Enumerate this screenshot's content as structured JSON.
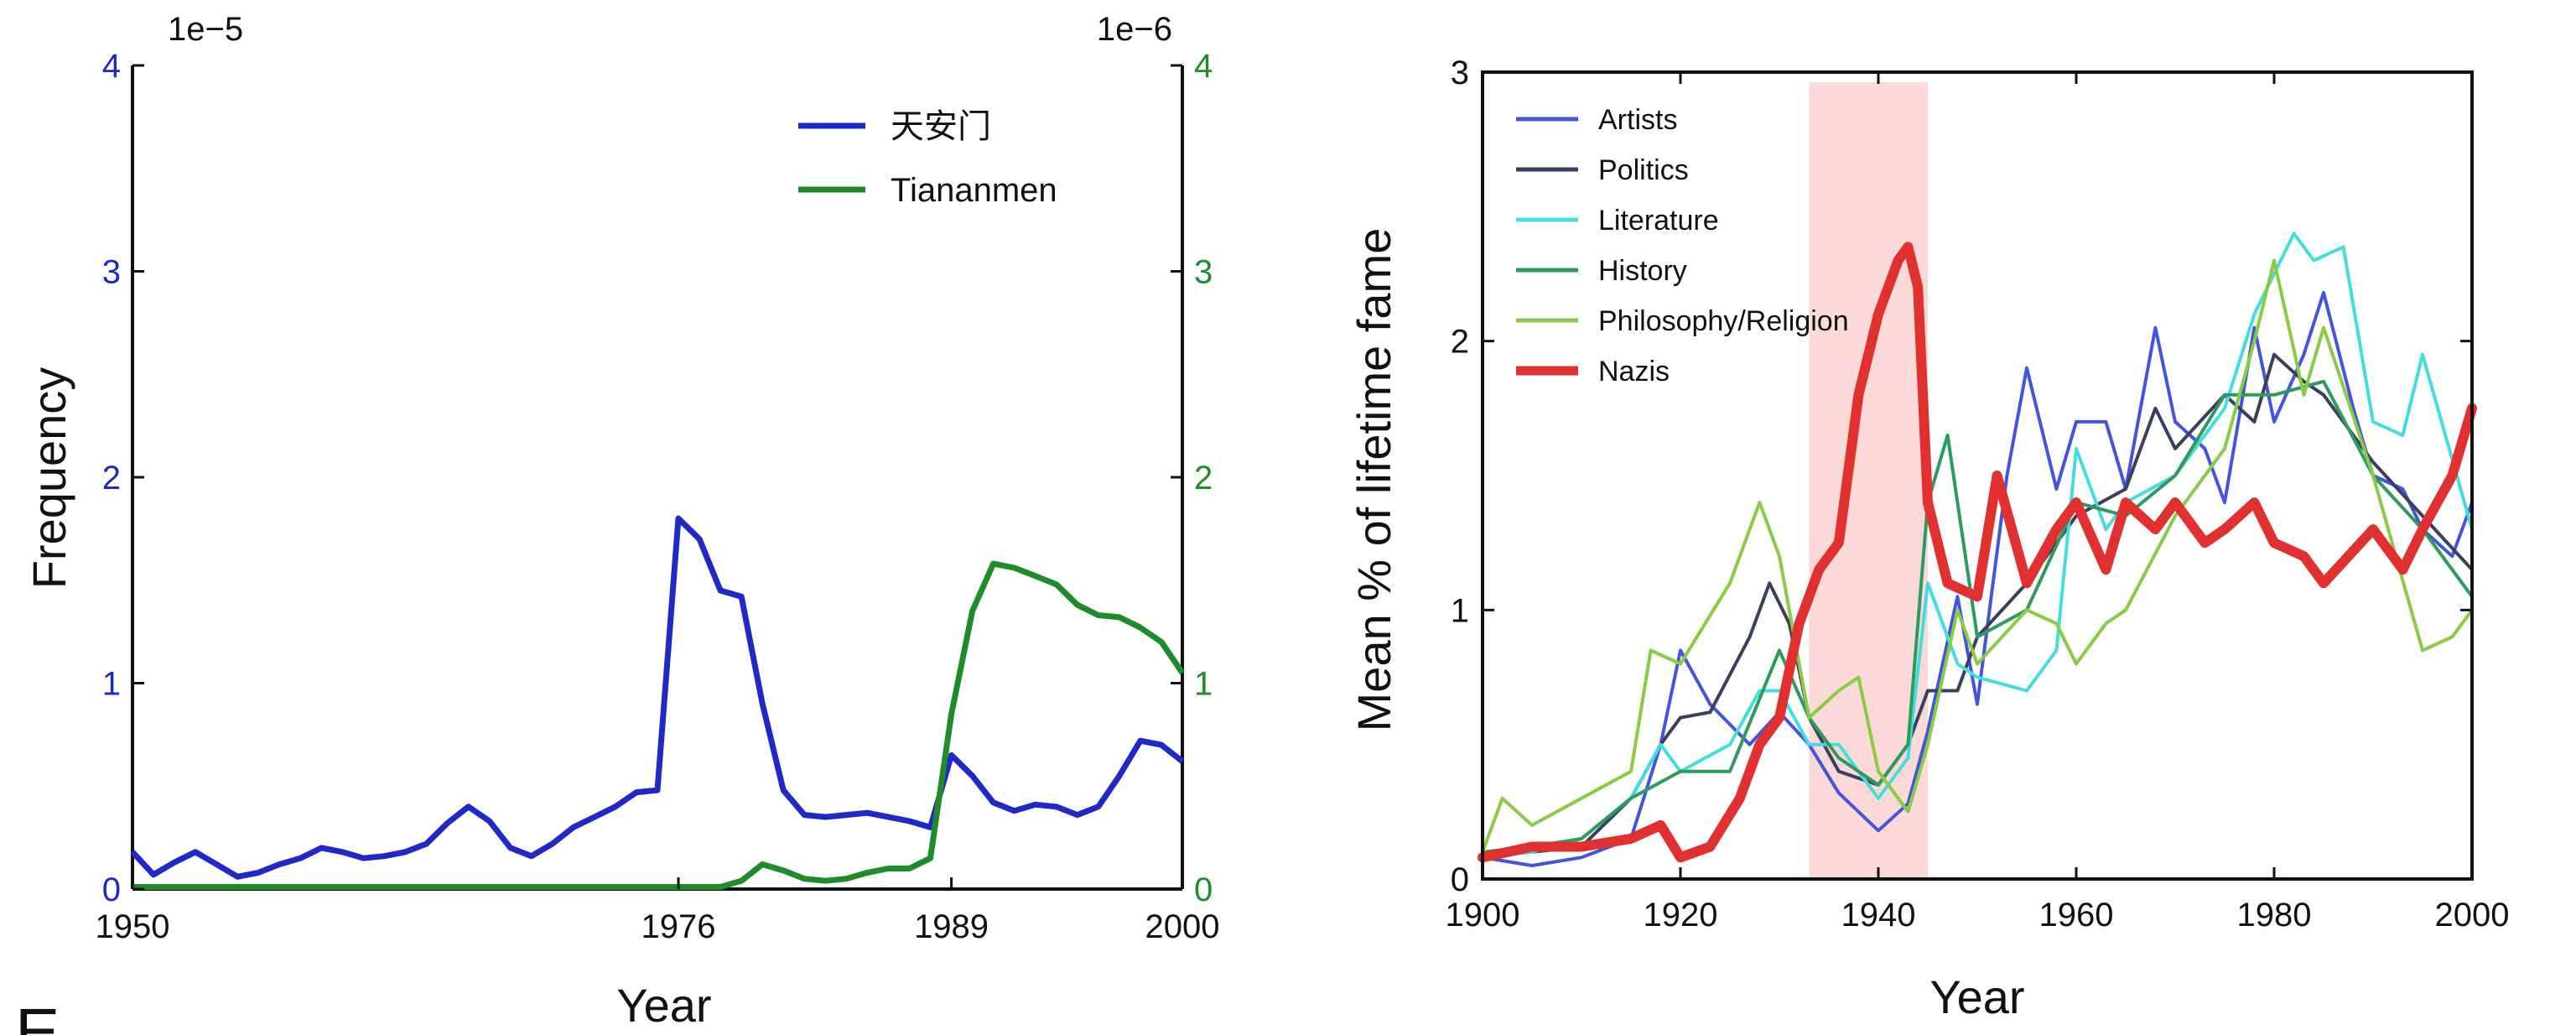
{
  "figure_letter": "E",
  "colors": {
    "blue": "#1f28c8",
    "green": "#1e8c28",
    "axis": "#111111",
    "shade": "#fbd9d9",
    "artists": "#4455dd",
    "politics": "#3a3f5e",
    "literature": "#44dddd",
    "history": "#2e9b5e",
    "philosophy": "#88cc44",
    "nazis": "#e03030"
  },
  "chart_data": [
    {
      "type": "line",
      "xlabel": "Year",
      "ylabel": "Frequency",
      "xlim": [
        1950,
        2000
      ],
      "xticks": [
        1950,
        1976,
        1989,
        2000
      ],
      "left_axis": {
        "ylim": [
          0,
          4
        ],
        "ticks": [
          0,
          1,
          2,
          3,
          4
        ],
        "exponent": "1e−5",
        "color": "#1f28c8"
      },
      "right_axis": {
        "ylim": [
          0,
          4
        ],
        "ticks": [
          0,
          1,
          2,
          3,
          4
        ],
        "exponent": "1e−6",
        "color": "#1e8c28"
      },
      "legend": [
        "天安门",
        "Tiananmen"
      ],
      "series": [
        {
          "name": "天安门",
          "axis": "left",
          "color": "#1f28c8",
          "x": [
            1950,
            1951,
            1952,
            1953,
            1954,
            1955,
            1956,
            1957,
            1958,
            1959,
            1960,
            1961,
            1962,
            1963,
            1964,
            1965,
            1966,
            1967,
            1968,
            1969,
            1970,
            1971,
            1972,
            1973,
            1974,
            1975,
            1976,
            1977,
            1978,
            1979,
            1980,
            1981,
            1982,
            1983,
            1984,
            1985,
            1986,
            1987,
            1988,
            1989,
            1990,
            1991,
            1992,
            1993,
            1994,
            1995,
            1996,
            1997,
            1998,
            1999,
            2000
          ],
          "y": [
            0.18,
            0.07,
            0.13,
            0.18,
            0.12,
            0.06,
            0.08,
            0.12,
            0.15,
            0.2,
            0.18,
            0.15,
            0.16,
            0.18,
            0.22,
            0.32,
            0.4,
            0.33,
            0.2,
            0.16,
            0.22,
            0.3,
            0.35,
            0.4,
            0.47,
            0.48,
            1.8,
            1.7,
            1.45,
            1.42,
            0.9,
            0.48,
            0.36,
            0.35,
            0.36,
            0.37,
            0.35,
            0.33,
            0.3,
            0.65,
            0.55,
            0.42,
            0.38,
            0.41,
            0.4,
            0.36,
            0.4,
            0.55,
            0.72,
            0.7,
            0.62
          ]
        },
        {
          "name": "Tiananmen",
          "axis": "right",
          "color": "#1e8c28",
          "x": [
            1950,
            1955,
            1960,
            1965,
            1970,
            1975,
            1976,
            1977,
            1978,
            1979,
            1980,
            1981,
            1982,
            1983,
            1984,
            1985,
            1986,
            1987,
            1988,
            1989,
            1990,
            1991,
            1992,
            1993,
            1994,
            1995,
            1996,
            1997,
            1998,
            1999,
            2000
          ],
          "y": [
            0.01,
            0.01,
            0.01,
            0.01,
            0.01,
            0.01,
            0.01,
            0.01,
            0.01,
            0.04,
            0.12,
            0.09,
            0.05,
            0.04,
            0.05,
            0.08,
            0.1,
            0.1,
            0.15,
            0.85,
            1.35,
            1.58,
            1.56,
            1.52,
            1.48,
            1.38,
            1.33,
            1.32,
            1.27,
            1.2,
            1.05
          ]
        }
      ]
    },
    {
      "type": "line",
      "xlabel": "Year",
      "ylabel": "Mean % of lifetime fame",
      "xlim": [
        1900,
        2000
      ],
      "ylim": [
        0,
        3
      ],
      "xticks": [
        1900,
        1920,
        1940,
        1960,
        1980,
        2000
      ],
      "yticks": [
        0,
        1,
        2,
        3
      ],
      "shaded_region": [
        1933,
        1945
      ],
      "legend": [
        "Artists",
        "Politics",
        "Literature",
        "History",
        "Philosophy/Religion",
        "Nazis"
      ],
      "series": [
        {
          "name": "Artists",
          "color": "#4455dd",
          "x": [
            1900,
            1905,
            1910,
            1915,
            1918,
            1920,
            1923,
            1927,
            1930,
            1933,
            1936,
            1940,
            1943,
            1945,
            1948,
            1950,
            1953,
            1955,
            1958,
            1960,
            1963,
            1965,
            1968,
            1970,
            1973,
            1975,
            1978,
            1980,
            1983,
            1985,
            1988,
            1990,
            1993,
            1995,
            1998,
            2000
          ],
          "y": [
            0.08,
            0.05,
            0.08,
            0.15,
            0.5,
            0.85,
            0.65,
            0.5,
            0.62,
            0.5,
            0.32,
            0.18,
            0.28,
            0.55,
            1.05,
            0.65,
            1.5,
            1.9,
            1.45,
            1.7,
            1.7,
            1.45,
            2.05,
            1.7,
            1.6,
            1.4,
            2.05,
            1.7,
            1.95,
            2.18,
            1.75,
            1.5,
            1.45,
            1.3,
            1.2,
            1.4
          ]
        },
        {
          "name": "Politics",
          "color": "#3a3f5e",
          "x": [
            1900,
            1905,
            1910,
            1915,
            1918,
            1920,
            1923,
            1927,
            1929,
            1931,
            1933,
            1936,
            1940,
            1943,
            1945,
            1948,
            1950,
            1955,
            1960,
            1965,
            1968,
            1970,
            1975,
            1978,
            1980,
            1983,
            1985,
            1990,
            1995,
            2000
          ],
          "y": [
            0.1,
            0.1,
            0.12,
            0.3,
            0.5,
            0.6,
            0.62,
            0.9,
            1.1,
            0.95,
            0.6,
            0.4,
            0.35,
            0.5,
            0.7,
            0.7,
            0.9,
            1.1,
            1.35,
            1.45,
            1.75,
            1.6,
            1.8,
            1.7,
            1.95,
            1.85,
            1.8,
            1.55,
            1.35,
            1.15
          ]
        },
        {
          "name": "Literature",
          "color": "#44dddd",
          "x": [
            1900,
            1905,
            1910,
            1915,
            1918,
            1920,
            1925,
            1928,
            1930,
            1933,
            1936,
            1940,
            1943,
            1945,
            1948,
            1950,
            1955,
            1958,
            1960,
            1963,
            1965,
            1970,
            1975,
            1978,
            1980,
            1982,
            1984,
            1987,
            1990,
            1993,
            1995,
            2000
          ],
          "y": [
            0.08,
            0.1,
            0.15,
            0.3,
            0.5,
            0.4,
            0.5,
            0.7,
            0.7,
            0.5,
            0.5,
            0.3,
            0.45,
            1.1,
            0.8,
            0.75,
            0.7,
            0.85,
            1.6,
            1.3,
            1.4,
            1.5,
            1.75,
            2.1,
            2.25,
            2.4,
            2.3,
            2.35,
            1.7,
            1.65,
            1.95,
            1.3
          ]
        },
        {
          "name": "History",
          "color": "#2e9b5e",
          "x": [
            1900,
            1905,
            1910,
            1915,
            1920,
            1925,
            1930,
            1933,
            1936,
            1940,
            1943,
            1945,
            1947,
            1950,
            1955,
            1960,
            1965,
            1970,
            1975,
            1980,
            1985,
            1990,
            1995,
            2000
          ],
          "y": [
            0.1,
            0.12,
            0.15,
            0.3,
            0.4,
            0.4,
            0.85,
            0.6,
            0.45,
            0.35,
            0.5,
            1.4,
            1.65,
            0.9,
            1.0,
            1.4,
            1.35,
            1.5,
            1.8,
            1.8,
            1.85,
            1.5,
            1.3,
            1.05
          ]
        },
        {
          "name": "Philosophy/Religion",
          "color": "#88cc44",
          "x": [
            1900,
            1902,
            1905,
            1910,
            1915,
            1917,
            1920,
            1925,
            1928,
            1930,
            1933,
            1936,
            1938,
            1940,
            1943,
            1945,
            1948,
            1950,
            1955,
            1958,
            1960,
            1963,
            1965,
            1970,
            1975,
            1978,
            1980,
            1983,
            1985,
            1990,
            1995,
            1998,
            2000
          ],
          "y": [
            0.1,
            0.3,
            0.2,
            0.3,
            0.4,
            0.85,
            0.8,
            1.1,
            1.4,
            1.2,
            0.6,
            0.7,
            0.75,
            0.4,
            0.25,
            0.5,
            1.0,
            0.8,
            1.0,
            0.95,
            0.8,
            0.95,
            1.0,
            1.35,
            1.6,
            2.0,
            2.3,
            1.8,
            2.05,
            1.5,
            0.85,
            0.9,
            1.0
          ]
        },
        {
          "name": "Nazis",
          "color": "#e03030",
          "x": [
            1900,
            1905,
            1910,
            1915,
            1918,
            1920,
            1923,
            1926,
            1928,
            1930,
            1932,
            1934,
            1936,
            1938,
            1940,
            1942,
            1943,
            1944,
            1945,
            1947,
            1950,
            1952,
            1955,
            1958,
            1960,
            1963,
            1965,
            1968,
            1970,
            1973,
            1975,
            1978,
            1980,
            1983,
            1985,
            1990,
            1993,
            1995,
            1998,
            2000
          ],
          "y": [
            0.08,
            0.12,
            0.12,
            0.15,
            0.2,
            0.08,
            0.12,
            0.3,
            0.5,
            0.6,
            0.95,
            1.15,
            1.25,
            1.8,
            2.1,
            2.3,
            2.35,
            2.2,
            1.4,
            1.1,
            1.05,
            1.5,
            1.1,
            1.3,
            1.4,
            1.15,
            1.4,
            1.3,
            1.4,
            1.25,
            1.3,
            1.4,
            1.25,
            1.2,
            1.1,
            1.3,
            1.15,
            1.3,
            1.5,
            1.75
          ]
        }
      ]
    }
  ]
}
